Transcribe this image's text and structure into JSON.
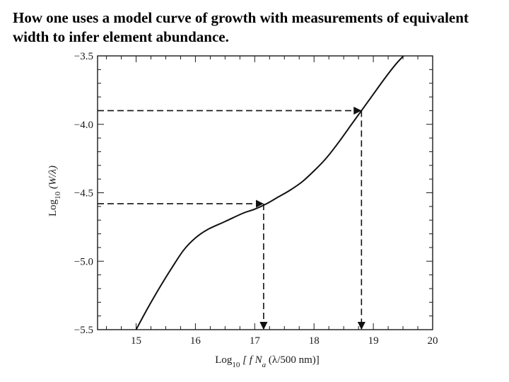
{
  "slide": {
    "title": "How one uses a model curve of growth with measurements of equivalent width to infer element abundance."
  },
  "chart_data": {
    "type": "line",
    "title": "",
    "xlabel_parts": {
      "prefix": "Log",
      "sub": "10",
      "main": " [ f N",
      "sub2": "a",
      "suffix": " (λ/500 nm)]"
    },
    "ylabel_parts": {
      "prefix": "Log",
      "sub": "10",
      "main": " (W/λ)"
    },
    "xlim": [
      14.35,
      20.0
    ],
    "ylim": [
      -5.5,
      -3.5
    ],
    "x_ticks": [
      15,
      16,
      17,
      18,
      19,
      20
    ],
    "x_tick_labels": [
      "15",
      "16",
      "17",
      "18",
      "19",
      "20"
    ],
    "y_ticks": [
      -3.5,
      -4.0,
      -4.5,
      -5.0,
      -5.5
    ],
    "y_tick_labels": [
      "−3.5",
      "−4.0",
      "−4.5",
      "−5.0",
      "−5.5"
    ],
    "grid": false,
    "series": [
      {
        "x": [
          15.0,
          15.2,
          15.4,
          15.6,
          15.8,
          16.0,
          16.2,
          16.5,
          16.8,
          17.0,
          17.2,
          17.4,
          17.6,
          17.8,
          18.0,
          18.2,
          18.4,
          18.6,
          18.8,
          19.0,
          19.2,
          19.4,
          19.6
        ],
        "y": [
          -5.5,
          -5.34,
          -5.19,
          -5.05,
          -4.92,
          -4.83,
          -4.77,
          -4.71,
          -4.65,
          -4.62,
          -4.58,
          -4.53,
          -4.48,
          -4.42,
          -4.34,
          -4.25,
          -4.14,
          -4.02,
          -3.9,
          -3.78,
          -3.66,
          -3.55,
          -3.46
        ],
        "color": "#111111"
      }
    ],
    "annotations": [
      {
        "type": "readout",
        "x": 17.15,
        "y": -4.58
      },
      {
        "type": "readout",
        "x": 18.8,
        "y": -3.9
      }
    ]
  }
}
